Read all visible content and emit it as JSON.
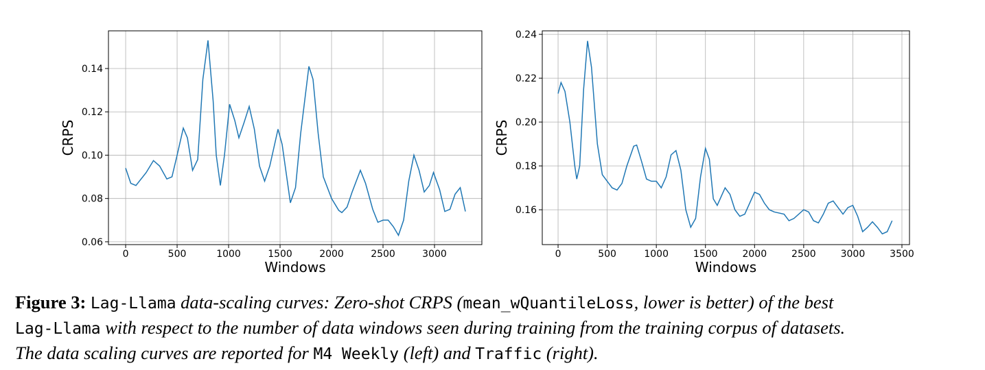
{
  "chart_data": [
    {
      "type": "line",
      "xlabel": "Windows",
      "ylabel": "CRPS",
      "color": "#1f77b4",
      "grid": true,
      "x": [
        0,
        50,
        100,
        200,
        270,
        330,
        400,
        450,
        500,
        560,
        600,
        650,
        700,
        750,
        800,
        850,
        880,
        920,
        960,
        1010,
        1060,
        1100,
        1150,
        1200,
        1250,
        1300,
        1350,
        1400,
        1480,
        1520,
        1600,
        1650,
        1700,
        1780,
        1820,
        1870,
        1920,
        2000,
        2070,
        2100,
        2150,
        2200,
        2280,
        2330,
        2400,
        2450,
        2500,
        2550,
        2600,
        2650,
        2700,
        2750,
        2800,
        2850,
        2900,
        2950,
        2990,
        3050,
        3100,
        3150,
        3200,
        3250,
        3300
      ],
      "values": [
        0.094,
        0.087,
        0.086,
        0.092,
        0.0975,
        0.095,
        0.089,
        0.09,
        0.1,
        0.1125,
        0.108,
        0.093,
        0.098,
        0.135,
        0.153,
        0.125,
        0.1,
        0.086,
        0.1,
        0.1235,
        0.116,
        0.108,
        0.115,
        0.1225,
        0.112,
        0.095,
        0.088,
        0.095,
        0.112,
        0.105,
        0.078,
        0.085,
        0.11,
        0.141,
        0.135,
        0.11,
        0.09,
        0.08,
        0.0745,
        0.0735,
        0.076,
        0.083,
        0.093,
        0.087,
        0.075,
        0.069,
        0.07,
        0.07,
        0.067,
        0.063,
        0.07,
        0.088,
        0.1,
        0.093,
        0.083,
        0.086,
        0.092,
        0.084,
        0.074,
        0.075,
        0.082,
        0.085,
        0.074
      ],
      "xlim": [
        -167,
        3460
      ],
      "ylim": [
        0.0587,
        0.1574
      ],
      "xticks": [
        0,
        500,
        1000,
        1500,
        2000,
        2500,
        3000
      ],
      "yticks": [
        0.06,
        0.08,
        {
          "value": 0.1,
          "label": "0.10"
        },
        0.12,
        0.14
      ]
    },
    {
      "type": "line",
      "xlabel": "Windows",
      "ylabel": "CRPS",
      "color": "#1f77b4",
      "grid": true,
      "x": [
        0,
        30,
        70,
        120,
        170,
        190,
        220,
        260,
        300,
        340,
        400,
        450,
        500,
        550,
        600,
        650,
        700,
        770,
        800,
        850,
        900,
        950,
        1000,
        1050,
        1100,
        1150,
        1200,
        1250,
        1300,
        1350,
        1400,
        1450,
        1500,
        1540,
        1580,
        1620,
        1700,
        1750,
        1800,
        1850,
        1900,
        1950,
        2000,
        2050,
        2100,
        2150,
        2200,
        2300,
        2350,
        2400,
        2500,
        2550,
        2600,
        2650,
        2700,
        2750,
        2800,
        2850,
        2900,
        2950,
        3000,
        3050,
        3100,
        3150,
        3200,
        3250,
        3300,
        3350,
        3400
      ],
      "values": [
        0.213,
        0.218,
        0.214,
        0.2,
        0.18,
        0.174,
        0.18,
        0.215,
        0.237,
        0.225,
        0.19,
        0.176,
        0.173,
        0.17,
        0.169,
        0.172,
        0.18,
        0.189,
        0.1895,
        0.182,
        0.174,
        0.173,
        0.173,
        0.17,
        0.175,
        0.185,
        0.187,
        0.178,
        0.16,
        0.152,
        0.156,
        0.175,
        0.188,
        0.183,
        0.165,
        0.162,
        0.17,
        0.167,
        0.16,
        0.157,
        0.158,
        0.163,
        0.168,
        0.167,
        0.163,
        0.16,
        0.159,
        0.158,
        0.155,
        0.156,
        0.16,
        0.159,
        0.155,
        0.154,
        0.158,
        0.163,
        0.164,
        0.161,
        0.158,
        0.161,
        0.162,
        0.157,
        0.15,
        0.152,
        0.1545,
        0.152,
        0.149,
        0.15,
        0.155
      ],
      "xlim": [
        -161,
        3577
      ],
      "ylim": [
        0.1441,
        0.2416
      ],
      "xticks": [
        0,
        500,
        1000,
        1500,
        2000,
        2500,
        3000,
        3500
      ],
      "yticks": [
        0.16,
        0.18,
        {
          "value": 0.2,
          "label": "0.20"
        },
        0.22,
        0.24
      ]
    }
  ],
  "caption": {
    "lines": [
      [
        "Figure 3:",
        " ",
        "Lag-Llama",
        " data-scaling curves: Zero-shot CRPS (",
        "mean_wQuantileLoss",
        ", lower is better) of the best"
      ],
      [
        "Lag-Llama",
        " with respect to the number of data windows seen during training from the training corpus of datasets."
      ],
      [
        "The data scaling curves are reported for ",
        "M4 Weekly",
        " (left) and ",
        "Traffic",
        " (right)."
      ]
    ]
  }
}
